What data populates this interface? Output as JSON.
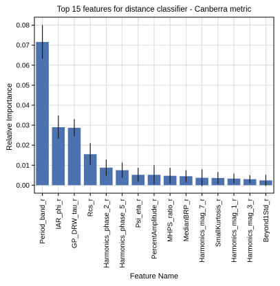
{
  "chart_data": {
    "type": "bar",
    "title": "Top 15 features for distance classifier - Canberra metric",
    "xlabel": "Feature Name",
    "ylabel": "Relative Importance",
    "ylim": [
      -0.004,
      0.084
    ],
    "yticks": [
      0.0,
      0.01,
      0.02,
      0.03,
      0.04,
      0.05,
      0.06,
      0.07,
      0.08
    ],
    "ytick_labels": [
      "0.00",
      "0.01",
      "0.02",
      "0.03",
      "0.04",
      "0.05",
      "0.06",
      "0.07",
      "0.08"
    ],
    "grid": true,
    "bar_color": "#4c72b0",
    "error_color": "#1a1a1a",
    "categories": [
      "Period_band_r",
      "IAR_phi_r",
      "GP_DRW_tau_r",
      "Rcs_r",
      "Harmonics_phase_2_r",
      "Harmonics_phase_5_r",
      "Psi_eta_r",
      "PercentAmplitude_r",
      "MHPS_ratio_r",
      "MedianBRP_r",
      "Harmonics_mag_7_r",
      "SmallKurtosis_r",
      "Harmonics_mag_1_r",
      "Harmonics_mag_3_r",
      "Beyond1Std_r"
    ],
    "values": [
      0.0716,
      0.029,
      0.0287,
      0.0155,
      0.0088,
      0.0075,
      0.0052,
      0.0052,
      0.0047,
      0.0045,
      0.0037,
      0.0036,
      0.0033,
      0.003,
      0.0024
    ],
    "errors": [
      0.0085,
      0.0058,
      0.0043,
      0.0055,
      0.004,
      0.0038,
      0.0035,
      0.0048,
      0.004,
      0.003,
      0.0042,
      0.003,
      0.0025,
      0.002,
      0.0028
    ]
  }
}
